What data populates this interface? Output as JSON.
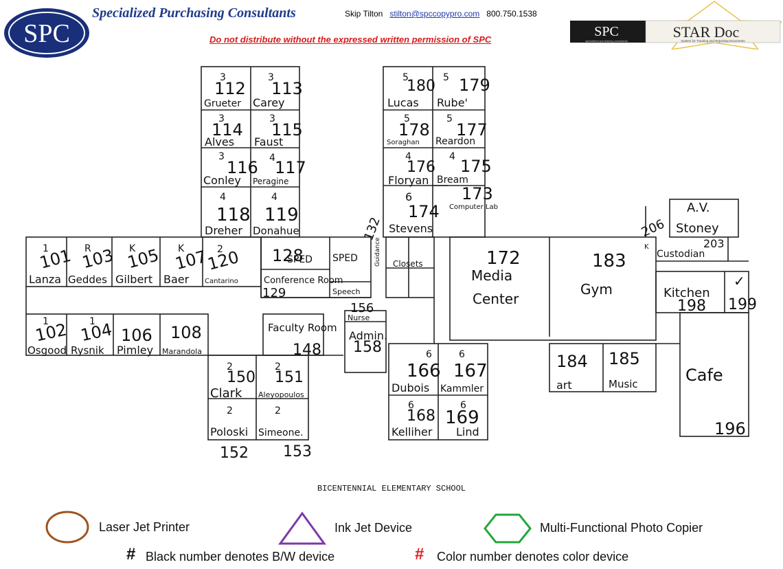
{
  "header": {
    "company": "Specialized Purchasing Consultants",
    "contact_name": "Skip Tilton",
    "contact_email": "stilton@spccopypro.com",
    "contact_phone": "800.750.1538",
    "warning": "Do not distribute without the expressed written permission of SPC",
    "logo_text": "SPC",
    "star_logo_left": "SPC",
    "star_logo_right": "STAR Doc",
    "star_sub_left": "specialized purchasing consultants",
    "star_sub_right": "System for Tracking and Reporting Documents"
  },
  "rooms": [
    {
      "id": "r112",
      "num": "112",
      "floor": "3",
      "name": "Grueter"
    },
    {
      "id": "r113",
      "num": "113",
      "floor": "3",
      "name": "Carey"
    },
    {
      "id": "r114",
      "num": "114",
      "floor": "3",
      "name": "Alves"
    },
    {
      "id": "r115",
      "num": "115",
      "floor": "3",
      "name": "Faust"
    },
    {
      "id": "r116",
      "num": "116",
      "floor": "3",
      "name": "Conley"
    },
    {
      "id": "r117",
      "num": "117",
      "floor": "4",
      "name": "Peragine"
    },
    {
      "id": "r118",
      "num": "118",
      "floor": "4",
      "name": "Dreher"
    },
    {
      "id": "r119",
      "num": "119",
      "floor": "4",
      "name": "Donahue"
    },
    {
      "id": "r101",
      "num": "101",
      "floor": "1",
      "name": "Lanza"
    },
    {
      "id": "r103",
      "num": "103",
      "floor": "R",
      "name": "Geddes"
    },
    {
      "id": "r105",
      "num": "105",
      "floor": "K",
      "name": "Gilbert"
    },
    {
      "id": "r107",
      "num": "107",
      "floor": "K",
      "name": "Baer"
    },
    {
      "id": "r120",
      "num": "120",
      "floor": "2",
      "name": "Cantarino"
    },
    {
      "id": "r102",
      "num": "102",
      "floor": "1",
      "name": "Osgood"
    },
    {
      "id": "r104",
      "num": "104",
      "floor": "1",
      "name": "Rysnik"
    },
    {
      "id": "r106",
      "num": "106",
      "floor": "",
      "name": "Pimley"
    },
    {
      "id": "r108",
      "num": "108",
      "floor": "",
      "name": "Marandola"
    },
    {
      "id": "r150",
      "num": "150",
      "floor": "2",
      "name": "Clark"
    },
    {
      "id": "r151",
      "num": "151",
      "floor": "2",
      "name": "Aleyopoulos"
    },
    {
      "id": "r152",
      "num": "152",
      "floor": "2",
      "name": "Poloski"
    },
    {
      "id": "r153",
      "num": "153",
      "floor": "2",
      "name": "Simeone."
    },
    {
      "id": "r180",
      "num": "180",
      "floor": "5",
      "name": "Lucas"
    },
    {
      "id": "r179",
      "num": "179",
      "floor": "5",
      "name": "Rube'"
    },
    {
      "id": "r178",
      "num": "178",
      "floor": "5",
      "name": "Soraghan"
    },
    {
      "id": "r177",
      "num": "177",
      "floor": "5",
      "name": "Reardon"
    },
    {
      "id": "r176",
      "num": "176",
      "floor": "4",
      "name": "Floryan"
    },
    {
      "id": "r175",
      "num": "175",
      "floor": "4",
      "name": "Bream"
    },
    {
      "id": "r174",
      "num": "174",
      "floor": "6",
      "name": "Stevens"
    },
    {
      "id": "r166",
      "num": "166",
      "floor": "6",
      "name": "Dubois"
    },
    {
      "id": "r167",
      "num": "167",
      "floor": "6",
      "name": "Kammler"
    },
    {
      "id": "r168",
      "num": "168",
      "floor": "6",
      "name": "Kelliher"
    },
    {
      "id": "r169",
      "num": "169",
      "floor": "6",
      "name": "Lind"
    }
  ],
  "labels": {
    "sped1": "SPED",
    "sped2": "SPED",
    "r128": "128",
    "conference": "Conference Room",
    "r129": "129",
    "speech": "Speech",
    "guidance": "Guidance",
    "r132": "132",
    "closets": "Closets",
    "faculty": "Faculty Room",
    "r148": "148",
    "r156": "156",
    "nurse": "Nurse",
    "admin": "Admin.",
    "r158": "158",
    "r173": "173",
    "computer_lab": "Computer Lab",
    "r172": "172",
    "media": "Media",
    "center": "Center",
    "r183": "183",
    "gym": "Gym",
    "r206": "206",
    "av": "A.V.",
    "stoney": "Stoney",
    "r203": "203",
    "k": "K",
    "custodian": "Custodian",
    "kitchen": "Kitchen",
    "r198": "198",
    "r199": "199",
    "check": "✓",
    "r184": "184",
    "art": "art",
    "r185": "185",
    "music": "Music",
    "cafe": "Cafe",
    "r196": "196"
  },
  "caption": "BICENTENNIAL ELEMENTARY SCHOOL",
  "legend": {
    "laser": "Laser Jet Printer",
    "inkjet": "Ink Jet Device",
    "mfp": "Multi-Functional Photo Copier",
    "hash": "#",
    "bw": "Black number denotes B/W device",
    "color": "Color number denotes color device",
    "colors": {
      "laser": "#a0521e",
      "inkjet": "#7a3aa8",
      "mfp": "#22a63a",
      "red": "#e02020"
    }
  }
}
